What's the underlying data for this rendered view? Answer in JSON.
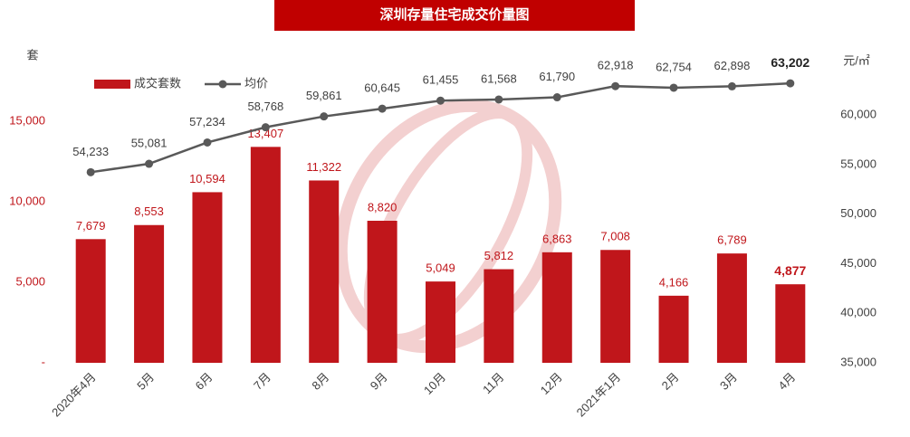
{
  "chart_data": {
    "type": "bar_line",
    "title": "深圳存量住宅成交价量图",
    "y_label": "套",
    "y2_label": "元/㎡",
    "categories": [
      "2020年4月",
      "5月",
      "6月",
      "7月",
      "8月",
      "9月",
      "10月",
      "11月",
      "12月",
      "2021年1月",
      "2月",
      "3月",
      "4月"
    ],
    "series": [
      {
        "name": "成交套数",
        "color": "#c0161b",
        "axis": "y",
        "values": [
          7679,
          8553,
          10594,
          13407,
          11322,
          8820,
          5049,
          5812,
          6863,
          7008,
          4166,
          6789,
          4877
        ],
        "value_labels": [
          "7,679",
          "8,553",
          "10,594",
          "13,407",
          "11,322",
          "8,820",
          "5,049",
          "5,812",
          "6,863",
          "7,008",
          "4,166",
          "6,789",
          "4,877"
        ]
      },
      {
        "name": "均价",
        "color": "#595959",
        "axis": "y2",
        "values": [
          54233,
          55081,
          57234,
          58768,
          59861,
          60645,
          61455,
          61568,
          61790,
          62918,
          62754,
          62898,
          63202
        ],
        "value_labels": [
          "54,233",
          "55,081",
          "57,234",
          "58,768",
          "59,861",
          "60,645",
          "61,455",
          "61,568",
          "61,790",
          "62,918",
          "62,754",
          "62,898",
          "63,202"
        ]
      }
    ],
    "ylim": [
      0,
      20000
    ],
    "yticks": [
      {
        "value": 0,
        "label": "-"
      },
      {
        "value": 5000,
        "label": "5,000"
      },
      {
        "value": 10000,
        "label": "10,000"
      },
      {
        "value": 15000,
        "label": "15,000"
      }
    ],
    "y2lim": [
      35000,
      67500
    ],
    "y2ticks": [
      {
        "value": 35000,
        "label": "35,000"
      },
      {
        "value": 40000,
        "label": "40,000"
      },
      {
        "value": 45000,
        "label": "45,000"
      },
      {
        "value": 50000,
        "label": "50,000"
      },
      {
        "value": 55000,
        "label": "55,000"
      },
      {
        "value": 60000,
        "label": "60,000"
      }
    ],
    "grid": false
  }
}
